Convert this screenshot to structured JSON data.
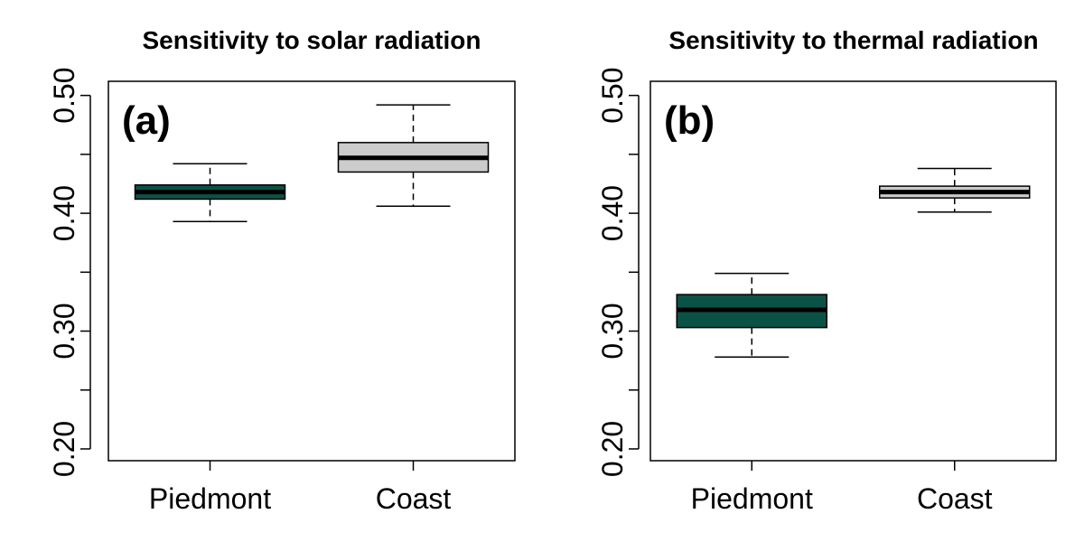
{
  "chart_data": [
    {
      "type": "boxplot",
      "panel_label": "(a)",
      "title": "Sensitivity to solar radiation",
      "categories": [
        "Piedmont",
        "Coast"
      ],
      "ylim": [
        0.19,
        0.512
      ],
      "yticks": [
        0.2,
        0.25,
        0.3,
        0.35,
        0.4,
        0.45,
        0.5
      ],
      "ytick_labels": [
        "0.20",
        "",
        "0.30",
        "",
        "0.40",
        "",
        "0.50"
      ],
      "boxes": [
        {
          "category": "Piedmont",
          "whisker_low": 0.393,
          "q1": 0.412,
          "median": 0.418,
          "q3": 0.424,
          "whisker_high": 0.442,
          "fill": "#0b5246"
        },
        {
          "category": "Coast",
          "whisker_low": 0.406,
          "q1": 0.435,
          "median": 0.447,
          "q3": 0.46,
          "whisker_high": 0.492,
          "fill": "#cccccc"
        }
      ]
    },
    {
      "type": "boxplot",
      "panel_label": "(b)",
      "title": "Sensitivity to thermal radiation",
      "categories": [
        "Piedmont",
        "Coast"
      ],
      "ylim": [
        0.19,
        0.512
      ],
      "yticks": [
        0.2,
        0.25,
        0.3,
        0.35,
        0.4,
        0.45,
        0.5
      ],
      "ytick_labels": [
        "0.20",
        "",
        "0.30",
        "",
        "0.40",
        "",
        "0.50"
      ],
      "boxes": [
        {
          "category": "Piedmont",
          "whisker_low": 0.278,
          "q1": 0.303,
          "median": 0.318,
          "q3": 0.331,
          "whisker_high": 0.349,
          "fill": "#0b5246"
        },
        {
          "category": "Coast",
          "whisker_low": 0.401,
          "q1": 0.413,
          "median": 0.418,
          "q3": 0.423,
          "whisker_high": 0.438,
          "fill": "#cccccc"
        }
      ]
    }
  ]
}
